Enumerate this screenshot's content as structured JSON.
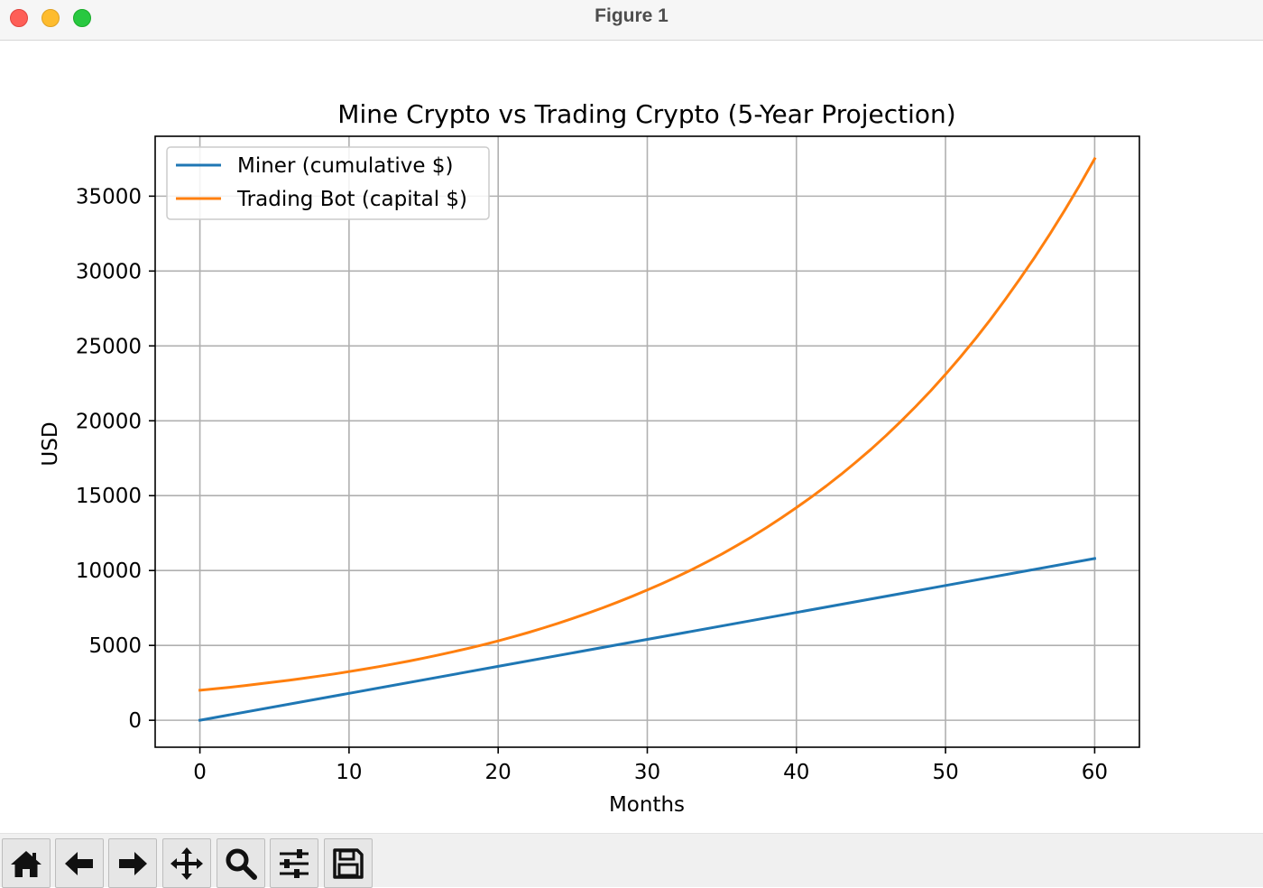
{
  "window": {
    "title": "Figure 1"
  },
  "toolbar": {
    "buttons": [
      {
        "name": "home-button",
        "icon": "home-icon"
      },
      {
        "name": "back-button",
        "icon": "arrow-left-icon"
      },
      {
        "name": "forward-button",
        "icon": "arrow-right-icon"
      },
      {
        "name": "pan-button",
        "icon": "move-icon"
      },
      {
        "name": "zoom-button",
        "icon": "magnifier-icon"
      },
      {
        "name": "configure-subplots-button",
        "icon": "sliders-icon"
      },
      {
        "name": "save-button",
        "icon": "floppy-disk-icon"
      }
    ]
  },
  "chart_data": {
    "type": "line",
    "title": "Mine Crypto vs Trading Crypto (5-Year Projection)",
    "xlabel": "Months",
    "ylabel": "USD",
    "xlim": [
      -3,
      63
    ],
    "ylim": [
      -1800,
      39000
    ],
    "xticks": [
      0,
      10,
      20,
      30,
      40,
      50,
      60
    ],
    "yticks": [
      0,
      5000,
      10000,
      15000,
      20000,
      25000,
      30000,
      35000
    ],
    "grid": true,
    "legend_position": "upper left",
    "series": [
      {
        "name": "Miner (cumulative $)",
        "color": "#1f77b4",
        "x": [
          0,
          10,
          20,
          30,
          40,
          50,
          60
        ],
        "y": [
          0,
          1800,
          3600,
          5400,
          7200,
          9000,
          10800
        ]
      },
      {
        "name": "Trading Bot (capital $)",
        "color": "#ff7f0e",
        "x": [
          0,
          5,
          10,
          15,
          20,
          25,
          30,
          35,
          40,
          45,
          50,
          55,
          60
        ],
        "y": [
          2000,
          2550,
          3250,
          4150,
          5300,
          6800,
          8700,
          11100,
          14200,
          18100,
          23100,
          29500,
          37500
        ]
      }
    ]
  }
}
